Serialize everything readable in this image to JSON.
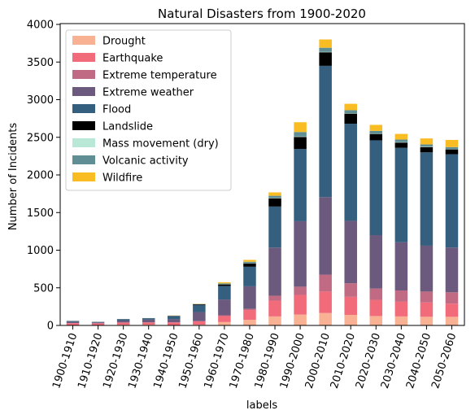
{
  "chart_data": {
    "type": "bar",
    "stacked": true,
    "title": "Natural Disasters from 1900-2020",
    "xlabel": "labels",
    "ylabel": "Number of Incidents",
    "ylim": [
      0,
      4000
    ],
    "yticks": [
      0,
      500,
      1000,
      1500,
      2000,
      2500,
      3000,
      3500,
      4000
    ],
    "grid": false,
    "legend_position": "top-left",
    "categories": [
      "1900-1910",
      "1910-1920",
      "1920-1930",
      "1930-1940",
      "1940-1950",
      "1950-1960",
      "1960-1970",
      "1970-1980",
      "1980-1990",
      "1990-2000",
      "2000-2010",
      "2010-2020",
      "2020-2030",
      "2030-2040",
      "2040-2050",
      "2050-2060"
    ],
    "series": [
      {
        "name": "Drought",
        "color": "#f9b193",
        "values": [
          5,
          3,
          8,
          10,
          5,
          10,
          45,
          75,
          120,
          145,
          165,
          140,
          125,
          120,
          115,
          115
        ]
      },
      {
        "name": "Earthquake",
        "color": "#f26b7a",
        "values": [
          25,
          25,
          30,
          30,
          35,
          45,
          80,
          130,
          210,
          260,
          285,
          240,
          215,
          195,
          190,
          175
        ]
      },
      {
        "name": "Extreme temperature",
        "color": "#c06b83",
        "values": [
          2,
          2,
          2,
          2,
          2,
          3,
          10,
          15,
          65,
          110,
          225,
          180,
          150,
          150,
          145,
          150
        ]
      },
      {
        "name": "Extreme weather",
        "color": "#6b5a7e",
        "values": [
          15,
          10,
          25,
          35,
          40,
          120,
          210,
          300,
          640,
          870,
          1030,
          830,
          710,
          640,
          610,
          595
        ]
      },
      {
        "name": "Flood",
        "color": "#355f7f",
        "values": [
          10,
          5,
          15,
          15,
          40,
          95,
          180,
          260,
          545,
          960,
          1745,
          1290,
          1260,
          1255,
          1240,
          1240
        ]
      },
      {
        "name": "Landslide",
        "color": "#000000",
        "values": [
          2,
          2,
          3,
          3,
          5,
          8,
          20,
          45,
          110,
          160,
          180,
          135,
          85,
          70,
          70,
          65
        ]
      },
      {
        "name": "Mass movement (dry)",
        "color": "#b9e8d6",
        "values": [
          0,
          0,
          0,
          0,
          1,
          1,
          2,
          3,
          5,
          5,
          5,
          5,
          5,
          5,
          5,
          5
        ]
      },
      {
        "name": "Volcanic activity",
        "color": "#5f8f95",
        "values": [
          2,
          2,
          3,
          3,
          2,
          3,
          12,
          18,
          28,
          60,
          55,
          40,
          35,
          35,
          30,
          25
        ]
      },
      {
        "name": "Wildfire",
        "color": "#f9bc22",
        "values": [
          0,
          0,
          0,
          0,
          2,
          3,
          15,
          25,
          45,
          130,
          110,
          85,
          80,
          75,
          80,
          95
        ]
      }
    ]
  }
}
